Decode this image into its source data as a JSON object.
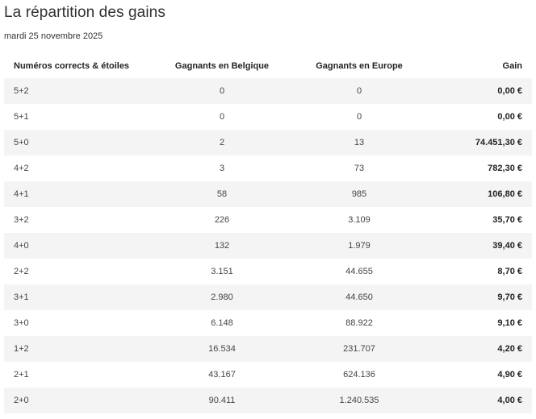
{
  "title": "La répartition des gains",
  "date": "mardi 25 novembre 2025",
  "table": {
    "headers": {
      "numbers": "Numéros corrects & étoiles",
      "belgium": "Gagnants en Belgique",
      "europe": "Gagnants en Europe",
      "gain": "Gain"
    },
    "rows": [
      {
        "numbers": "5+2",
        "belgium": "0",
        "europe": "0",
        "gain": "0,00 €"
      },
      {
        "numbers": "5+1",
        "belgium": "0",
        "europe": "0",
        "gain": "0,00 €"
      },
      {
        "numbers": "5+0",
        "belgium": "2",
        "europe": "13",
        "gain": "74.451,30 €"
      },
      {
        "numbers": "4+2",
        "belgium": "3",
        "europe": "73",
        "gain": "782,30 €"
      },
      {
        "numbers": "4+1",
        "belgium": "58",
        "europe": "985",
        "gain": "106,80 €"
      },
      {
        "numbers": "3+2",
        "belgium": "226",
        "europe": "3.109",
        "gain": "35,70 €"
      },
      {
        "numbers": "4+0",
        "belgium": "132",
        "europe": "1.979",
        "gain": "39,40 €"
      },
      {
        "numbers": "2+2",
        "belgium": "3.151",
        "europe": "44.655",
        "gain": "8,70 €"
      },
      {
        "numbers": "3+1",
        "belgium": "2.980",
        "europe": "44.650",
        "gain": "9,70 €"
      },
      {
        "numbers": "3+0",
        "belgium": "6.148",
        "europe": "88.922",
        "gain": "9,10 €"
      },
      {
        "numbers": "1+2",
        "belgium": "16.534",
        "europe": "231.707",
        "gain": "4,20 €"
      },
      {
        "numbers": "2+1",
        "belgium": "43.167",
        "europe": "624.136",
        "gain": "4,90 €"
      },
      {
        "numbers": "2+0",
        "belgium": "90.411",
        "europe": "1.240.535",
        "gain": "4,00 €"
      }
    ]
  }
}
